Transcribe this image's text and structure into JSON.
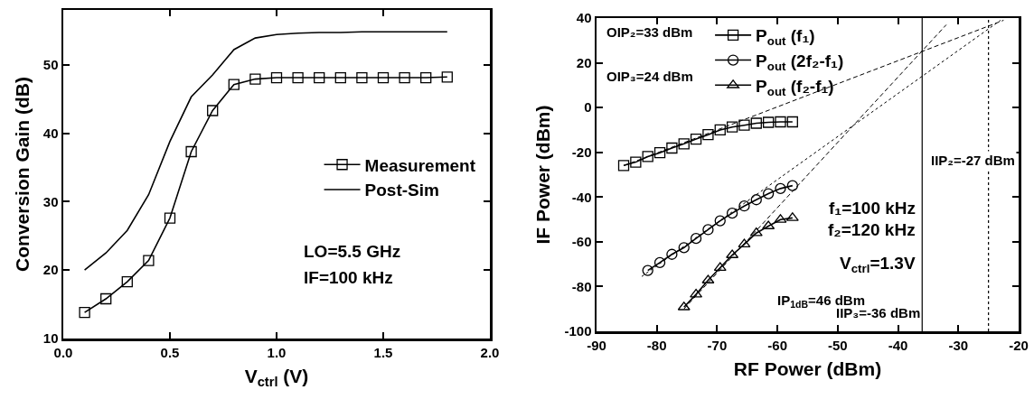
{
  "chart_data": [
    {
      "type": "line",
      "xlabel": "V$_{ctrl}$ (V)",
      "ylabel": "Conversion Gain (dB)",
      "x": [
        0.1,
        0.2,
        0.3,
        0.4,
        0.5,
        0.6,
        0.7,
        0.8,
        0.9,
        1.0,
        1.1,
        1.2,
        1.3,
        1.4,
        1.5,
        1.6,
        1.7,
        1.8
      ],
      "series": [
        {
          "name": "Measurement",
          "color": "#000000",
          "marker": "square",
          "values": [
            13.8,
            15.8,
            18.3,
            21.4,
            27.6,
            37.3,
            43.3,
            47.1,
            47.9,
            48.1,
            48.1,
            48.1,
            48.1,
            48.1,
            48.1,
            48.1,
            48.1,
            48.2
          ]
        },
        {
          "name": "Post-Sim",
          "color": "#000000",
          "marker": "none",
          "values": [
            20.0,
            22.5,
            25.8,
            31.0,
            38.8,
            45.3,
            48.5,
            52.2,
            53.9,
            54.4,
            54.6,
            54.7,
            54.7,
            54.8,
            54.8,
            54.8,
            54.8,
            54.8
          ]
        }
      ],
      "xlim": [
        0,
        2
      ],
      "xticks": [
        {
          "value": 0,
          "label": "0.0"
        },
        0.5,
        {
          "value": 1,
          "label": "1.0"
        },
        1.5,
        {
          "value": 2,
          "label": "2.0"
        }
      ],
      "ylim": [
        10,
        58
      ],
      "yticks": [
        10,
        20,
        30,
        40,
        50
      ],
      "grid": false,
      "legend": "bottom right",
      "annotations": [
        "LO=5.5 GHz",
        "IF=100 kHz"
      ]
    },
    {
      "type": "line",
      "xlabel": "RF Power (dBm)",
      "ylabel": "IF Power (dBm)",
      "series": [
        {
          "name": "P$_{out}$ (f₁)",
          "color": "#000000",
          "marker": "square",
          "x": [
            -85.5,
            -83.5,
            -81.5,
            -79.5,
            -77.5,
            -75.5,
            -73.5,
            -71.5,
            -69.5,
            -67.5,
            -65.5,
            -63.5,
            -61.5,
            -59.5,
            -57.5
          ],
          "values": [
            -25.9,
            -24.4,
            -21.9,
            -20.2,
            -18.1,
            -16.2,
            -14.1,
            -12.1,
            -10.0,
            -8.7,
            -7.9,
            -7.0,
            -6.6,
            -6.4,
            -6.4
          ]
        },
        {
          "name": "P$_{out}$ (2f₂-f₁)",
          "color": "#000000",
          "marker": "circle",
          "x": [
            -81.5,
            -79.5,
            -77.5,
            -75.5,
            -73.5,
            -71.5,
            -69.5,
            -67.5,
            -65.5,
            -63.5,
            -61.5,
            -59.5,
            -57.5
          ],
          "values": [
            -72.8,
            -69.3,
            -65.6,
            -62.6,
            -58.5,
            -54.6,
            -50.6,
            -47.2,
            -44.0,
            -41.2,
            -38.5,
            -36.2,
            -34.9
          ]
        },
        {
          "name": "P$_{out}$ (f₂-f₁)",
          "color": "#000000",
          "marker": "triangle",
          "x": [
            -75.5,
            -73.5,
            -71.5,
            -69.5,
            -67.5,
            -65.5,
            -63.5,
            -61.5,
            -59.5,
            -57.5
          ],
          "values": [
            -89.2,
            -83.5,
            -77.2,
            -71.6,
            -65.9,
            -61.1,
            -56.1,
            -53.0,
            -50.1,
            -49.3
          ]
        },
        {
          "type": "line",
          "color": "#000000",
          "marker": "none",
          "line_style": "dashed",
          "x": [
            -85.5,
            -22.5
          ],
          "values": [
            -26,
            39
          ]
        },
        {
          "type": "line",
          "color": "#000000",
          "marker": "none",
          "line_style": "dotted",
          "x": [
            -82.5,
            -23
          ],
          "values": [
            -75.5,
            39
          ]
        },
        {
          "type": "line",
          "color": "#000000",
          "marker": "none",
          "line_style": "dashed",
          "x": [
            -75.5,
            -32
          ],
          "values": [
            -90,
            37
          ]
        }
      ],
      "xlim": [
        -90,
        -20
      ],
      "xticks": [
        -90,
        -80,
        -70,
        -60,
        -50,
        -40,
        -30,
        -20
      ],
      "ylim": [
        -100,
        40
      ],
      "yticks": [
        -100,
        -80,
        -60,
        -40,
        -20,
        0,
        20,
        40
      ],
      "grid": false,
      "legend": "top left",
      "ref_lines": [
        {
          "axis": "x",
          "value": -36,
          "label": "IIP₃=-36 dBm",
          "color": "#000000",
          "line_style": "solid"
        },
        {
          "axis": "x",
          "value": -25,
          "color": "#000000",
          "line_style": "dotted"
        }
      ],
      "annotations": [
        "OIP₂=33 dBm",
        "OIP₃=24 dBm",
        "f₁=100 kHz",
        "f₂=120 kHz",
        "V$_{ctrl}$=1.3V",
        "IP$_{1dB}$=46 dBm",
        "IIP₂=-27 dBm"
      ]
    }
  ]
}
